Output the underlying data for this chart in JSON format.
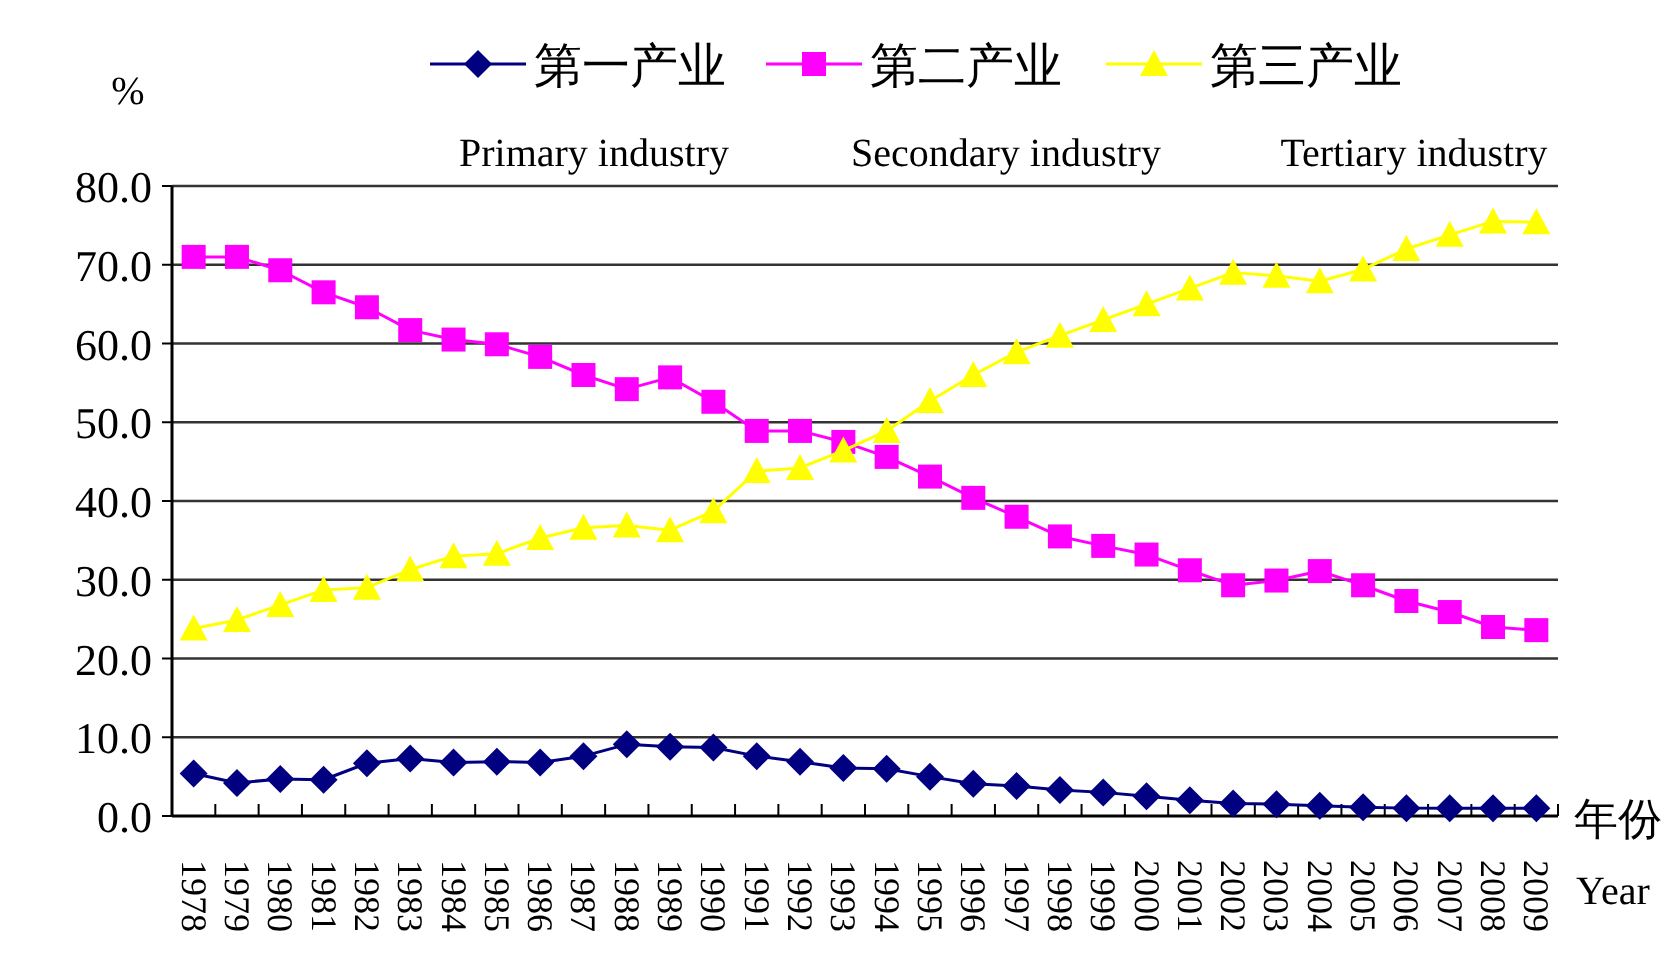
{
  "chart_data": {
    "type": "line",
    "ylabel": "%",
    "xlabel": "年份",
    "annotations": [
      "Year",
      "Primary industry",
      "Secondary industry",
      "Tertiary industry"
    ],
    "categories": [
      "1978",
      "1979",
      "1980",
      "1981",
      "1982",
      "1983",
      "1984",
      "1985",
      "1986",
      "1987",
      "1988",
      "1989",
      "1990",
      "1991",
      "1992",
      "1993",
      "1994",
      "1995",
      "1996",
      "1997",
      "1998",
      "1999",
      "2000",
      "2001",
      "2002",
      "2003",
      "2004",
      "2005",
      "2006",
      "2007",
      "2008",
      "2009"
    ],
    "series": [
      {
        "name": "第一产业",
        "color": "#000080",
        "marker": "diamond",
        "values": [
          5.4,
          4.2,
          4.7,
          4.6,
          6.7,
          7.3,
          6.8,
          6.9,
          6.8,
          7.6,
          9.1,
          8.8,
          8.7,
          7.6,
          6.9,
          6.1,
          6.0,
          5.0,
          4.1,
          3.8,
          3.3,
          3.0,
          2.5,
          2.0,
          1.6,
          1.5,
          1.3,
          1.1,
          1.0,
          1.0,
          1.0,
          1.0
        ]
      },
      {
        "name": "第二产业",
        "color": "#ff00ff",
        "marker": "square",
        "values": [
          71.0,
          71.0,
          69.3,
          66.5,
          64.6,
          61.7,
          60.5,
          59.9,
          58.3,
          56.0,
          54.2,
          55.7,
          52.6,
          48.9,
          48.9,
          47.5,
          45.6,
          43.1,
          40.4,
          38.0,
          35.5,
          34.3,
          33.2,
          31.2,
          29.3,
          29.9,
          31.1,
          29.3,
          27.3,
          25.9,
          24.0,
          23.6
        ]
      },
      {
        "name": "第三产业",
        "color": "#ffff00",
        "marker": "triangle",
        "values": [
          23.8,
          24.9,
          26.8,
          28.7,
          29.0,
          31.3,
          33.0,
          33.3,
          35.3,
          36.6,
          36.9,
          36.3,
          38.7,
          43.8,
          44.2,
          46.4,
          48.9,
          52.7,
          56.0,
          58.9,
          61.0,
          63.0,
          65.0,
          67.0,
          69.0,
          68.6,
          67.9,
          69.4,
          72.0,
          73.8,
          75.5,
          75.4
        ]
      }
    ],
    "ylim": [
      0,
      80
    ],
    "yticks": [
      {
        "value": 0,
        "label": "0.0"
      },
      {
        "value": 10,
        "label": "10.0"
      },
      {
        "value": 20,
        "label": "20.0"
      },
      {
        "value": 30,
        "label": "30.0"
      },
      {
        "value": 40,
        "label": "40.0"
      },
      {
        "value": 50,
        "label": "50.0"
      },
      {
        "value": 60,
        "label": "60.0"
      },
      {
        "value": 70,
        "label": "70.0"
      },
      {
        "value": 80,
        "label": "80.0"
      }
    ],
    "grid": "y",
    "legend": "top"
  }
}
